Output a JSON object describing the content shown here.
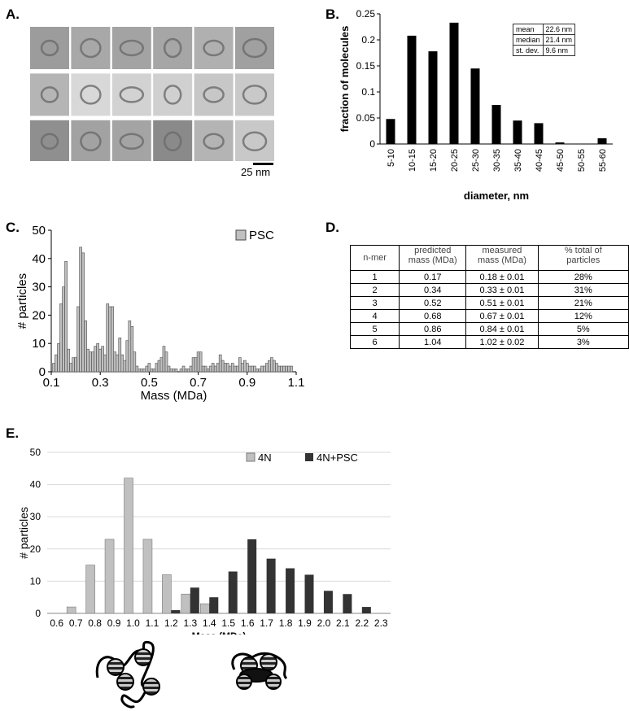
{
  "panels": {
    "a": "A.",
    "b": "B.",
    "c": "C.",
    "d": "D.",
    "e": "E."
  },
  "panel_a": {
    "scale_bar_label": "25 nm",
    "grid_rows": 3,
    "grid_cols": 6
  },
  "panel_b_stats": [
    {
      "label": "mean",
      "value": "22.6 nm"
    },
    {
      "label": "median",
      "value": "21.4 nm"
    },
    {
      "label": "st. dev.",
      "value": "9.6 nm"
    }
  ],
  "panel_d": {
    "headers": [
      "n-mer",
      "predicted\nmass (MDa)",
      "measured\nmass (MDa)",
      "% total of\nparticles"
    ],
    "rows": [
      [
        "1",
        "0.17",
        "0.18 ± 0.01",
        "28%"
      ],
      [
        "2",
        "0.34",
        "0.33 ± 0.01",
        "31%"
      ],
      [
        "3",
        "0.52",
        "0.51 ± 0.01",
        "21%"
      ],
      [
        "4",
        "0.68",
        "0.67 ± 0.01",
        "12%"
      ],
      [
        "5",
        "0.86",
        "0.84 ± 0.01",
        "5%"
      ],
      [
        "6",
        "1.04",
        "1.02 ± 0.02",
        "3%"
      ]
    ]
  },
  "chart_data": [
    {
      "id": "B",
      "type": "bar",
      "categories": [
        "5-10",
        "10-15",
        "15-20",
        "20-25",
        "25-30",
        "30-35",
        "35-40",
        "40-45",
        "45-50",
        "50-55",
        "55-60"
      ],
      "values": [
        0.048,
        0.208,
        0.178,
        0.233,
        0.145,
        0.075,
        0.045,
        0.04,
        0.003,
        0,
        0.011
      ],
      "ylim": [
        0,
        0.25
      ],
      "yticks": [
        "0",
        "0.05",
        "0.1",
        "0.15",
        "0.2",
        "0.25"
      ],
      "xlabel": "diameter, nm",
      "ylabel": "fraction of molecules",
      "color": "#000000"
    },
    {
      "id": "C",
      "type": "bar",
      "series": [
        {
          "name": "PSC",
          "color": "#c0c0c0"
        }
      ],
      "x": [
        0.11,
        0.12,
        0.13,
        0.14,
        0.15,
        0.16,
        0.17,
        0.18,
        0.19,
        0.2,
        0.21,
        0.22,
        0.23,
        0.24,
        0.25,
        0.26,
        0.27,
        0.28,
        0.29,
        0.3,
        0.31,
        0.32,
        0.33,
        0.34,
        0.35,
        0.36,
        0.37,
        0.38,
        0.39,
        0.4,
        0.41,
        0.42,
        0.43,
        0.44,
        0.45,
        0.46,
        0.47,
        0.48,
        0.49,
        0.5,
        0.51,
        0.52,
        0.53,
        0.54,
        0.55,
        0.56,
        0.57,
        0.58,
        0.59,
        0.6,
        0.61,
        0.62,
        0.63,
        0.64,
        0.65,
        0.66,
        0.67,
        0.68,
        0.69,
        0.7,
        0.71,
        0.72,
        0.73,
        0.74,
        0.75,
        0.76,
        0.77,
        0.78,
        0.79,
        0.8,
        0.81,
        0.82,
        0.83,
        0.84,
        0.85,
        0.86,
        0.87,
        0.88,
        0.89,
        0.9,
        0.91,
        0.92,
        0.93,
        0.94,
        0.95,
        0.96,
        0.97,
        0.98,
        0.99,
        1.0,
        1.01,
        1.02,
        1.03,
        1.04,
        1.05,
        1.06,
        1.07,
        1.08
      ],
      "values": [
        3,
        6,
        10,
        24,
        30,
        39,
        8,
        3,
        5,
        5,
        23,
        44,
        42,
        18,
        8,
        7,
        7,
        9,
        10,
        8,
        9,
        6,
        24,
        23,
        23,
        7,
        6,
        12,
        6,
        4,
        11,
        18,
        16,
        7,
        2,
        1,
        1,
        1,
        2,
        3,
        1,
        1,
        3,
        4,
        5,
        9,
        7,
        2,
        1,
        1,
        1,
        0,
        1,
        2,
        1,
        1,
        2,
        5,
        5,
        7,
        7,
        2,
        2,
        1,
        2,
        3,
        2,
        3,
        6,
        4,
        3,
        3,
        2,
        3,
        2,
        2,
        5,
        3,
        4,
        3,
        2,
        2,
        2,
        1,
        1,
        2,
        2,
        3,
        4,
        5,
        4,
        3,
        2,
        2,
        2,
        2,
        2,
        2
      ],
      "xlim": [
        0.1,
        1.1
      ],
      "xticks": [
        "0.1",
        "0.3",
        "0.5",
        "0.7",
        "0.9",
        "1.1"
      ],
      "ylim": [
        0,
        50
      ],
      "yticks": [
        "0",
        "10",
        "20",
        "30",
        "40",
        "50"
      ],
      "xlabel": "Mass (MDa)",
      "ylabel": "# particles"
    },
    {
      "id": "E",
      "type": "bar",
      "categories": [
        "0.6",
        "0.7",
        "0.8",
        "0.9",
        "1.0",
        "1.1",
        "1.2",
        "1.3",
        "1.4",
        "1.5",
        "1.6",
        "1.7",
        "1.8",
        "1.9",
        "2.0",
        "2.1",
        "2.2",
        "2.3"
      ],
      "series": [
        {
          "name": "4N",
          "color": "#c0c0c0",
          "values": [
            0,
            2,
            15,
            23,
            42,
            23,
            12,
            6,
            3,
            0,
            0,
            0,
            0,
            0,
            0,
            0,
            0,
            0
          ]
        },
        {
          "name": "4N+PSC",
          "color": "#333333",
          "values": [
            0,
            0,
            0,
            0,
            0,
            0,
            1,
            8,
            5,
            13,
            23,
            17,
            14,
            12,
            7,
            6,
            2,
            0
          ]
        }
      ],
      "ylim": [
        0,
        50
      ],
      "yticks": [
        "0",
        "10",
        "20",
        "30",
        "40",
        "50"
      ],
      "xlabel": "Mass (MDa)",
      "ylabel": "# particles"
    }
  ]
}
